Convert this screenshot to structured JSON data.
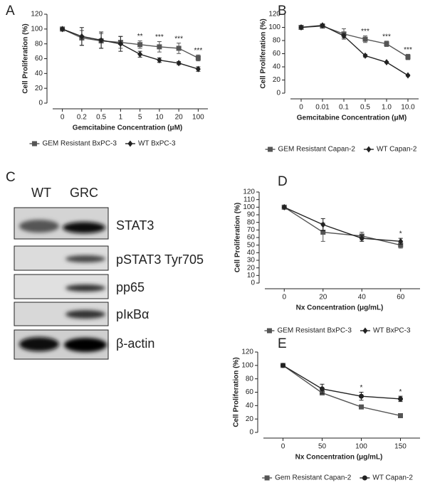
{
  "chart_data": [
    {
      "type": "line",
      "panel_label": "A",
      "y_label": "Cell Proliferation (%)",
      "x_label": "Gemcitabine Concentration (μM)",
      "categories": [
        "0",
        "0.2",
        "0.5",
        "1",
        "5",
        "10",
        "20",
        "100"
      ],
      "ylim": [
        0,
        120
      ],
      "yticks": [
        0,
        20,
        40,
        60,
        80,
        100,
        120
      ],
      "series": [
        {
          "name": "GEM Resistant BxPC-3",
          "color": "#555555",
          "marker": "square",
          "values": [
            100,
            88,
            84,
            82,
            79,
            76,
            74,
            61
          ],
          "errors": [
            1,
            10,
            10,
            8,
            5,
            7,
            7,
            4
          ]
        },
        {
          "name": "WT BxPC-3",
          "color": "#222222",
          "marker": "diamond",
          "values": [
            100,
            90,
            85,
            80,
            66,
            58,
            54,
            46
          ],
          "errors": [
            1,
            12,
            11,
            10,
            4,
            3,
            2,
            3
          ]
        }
      ],
      "significance": [
        null,
        null,
        null,
        null,
        "**",
        "***",
        "***",
        "***"
      ]
    },
    {
      "type": "line",
      "panel_label": "B",
      "y_label": "Cell Proliferation (%)",
      "x_label": "Gemcitabine Concentration (μM)",
      "categories": [
        "0",
        "0.01",
        "0.1",
        "0.5",
        "1.0",
        "10.0"
      ],
      "ylim": [
        0,
        120
      ],
      "yticks": [
        0,
        20,
        40,
        60,
        80,
        100,
        120
      ],
      "series": [
        {
          "name": "GEM Resistant Capan-2",
          "color": "#555555",
          "marker": "square",
          "values": [
            100,
            102,
            90,
            82,
            75,
            55
          ],
          "errors": [
            2,
            2,
            8,
            5,
            4,
            4
          ]
        },
        {
          "name": "WT Capan-2",
          "color": "#222222",
          "marker": "diamond",
          "values": [
            100,
            103,
            87,
            57,
            47,
            27
          ],
          "errors": [
            1,
            2,
            3,
            2,
            1,
            1
          ]
        }
      ],
      "significance": [
        null,
        null,
        null,
        "***",
        "***",
        "***"
      ]
    },
    {
      "type": "line",
      "panel_label": "D",
      "y_label": "Cell Proliferation (%)",
      "x_label": "Nx Concentration (μg/mL)",
      "categories": [
        "0",
        "20",
        "40",
        "60"
      ],
      "ylim": [
        0,
        120
      ],
      "yticks": [
        0,
        10,
        20,
        30,
        40,
        50,
        60,
        70,
        80,
        90,
        100,
        110,
        120
      ],
      "series": [
        {
          "name": "GEM Resistant BxPC-3",
          "color": "#555555",
          "marker": "square",
          "values": [
            100,
            67,
            62,
            50
          ],
          "errors": [
            1,
            12,
            5,
            4
          ]
        },
        {
          "name": "WT BxPC-3",
          "color": "#222222",
          "marker": "diamond",
          "values": [
            100,
            77,
            59,
            55
          ],
          "errors": [
            1,
            8,
            4,
            4
          ]
        }
      ],
      "significance": [
        null,
        null,
        null,
        "*"
      ]
    },
    {
      "type": "line",
      "panel_label": "E",
      "y_label": "Cell Proliferation (%)",
      "x_label": "Nx Concentration (μg/mL)",
      "categories": [
        "0",
        "50",
        "100",
        "150"
      ],
      "ylim": [
        0,
        120
      ],
      "yticks": [
        0,
        20,
        40,
        60,
        80,
        100,
        120
      ],
      "series": [
        {
          "name": "Gem Resistant Capan-2",
          "color": "#555555",
          "marker": "square",
          "values": [
            100,
            59,
            38,
            25
          ],
          "errors": [
            1,
            3,
            2,
            3
          ]
        },
        {
          "name": "WT Capan-2",
          "color": "#222222",
          "marker": "circle",
          "values": [
            100,
            65,
            54,
            50
          ],
          "errors": [
            1,
            7,
            6,
            4
          ]
        }
      ],
      "significance": [
        null,
        null,
        "*",
        "*"
      ]
    }
  ],
  "blot": {
    "panel_label": "C",
    "lanes": [
      "WT",
      "GRC"
    ],
    "bands": [
      "STAT3",
      "pSTAT3 Tyr705",
      "pp65",
      "pIκBα",
      "β-actin"
    ]
  }
}
